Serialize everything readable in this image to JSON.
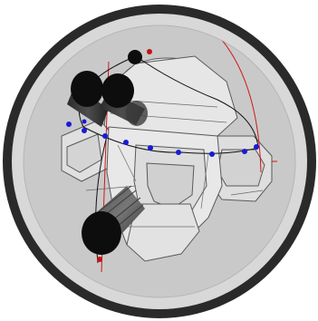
{
  "viewport": {
    "label": "",
    "colors": {
      "bezel": "#2a2a2a",
      "rim": "#d8d8d8",
      "field": "#c9c9c9",
      "part_fill": "#e4e4e4",
      "part_edge": "#5a5a5a",
      "cylinder": "#0d0d0d",
      "guide_line": "#d01818",
      "curve": "#111111",
      "control_point": "#1a1ad8",
      "anchor_point": "#c81010"
    },
    "icons": [
      "gripper-cylinder-icon",
      "robot-part-icon"
    ],
    "control_point_count": 10,
    "anchor_point_count": 2
  }
}
